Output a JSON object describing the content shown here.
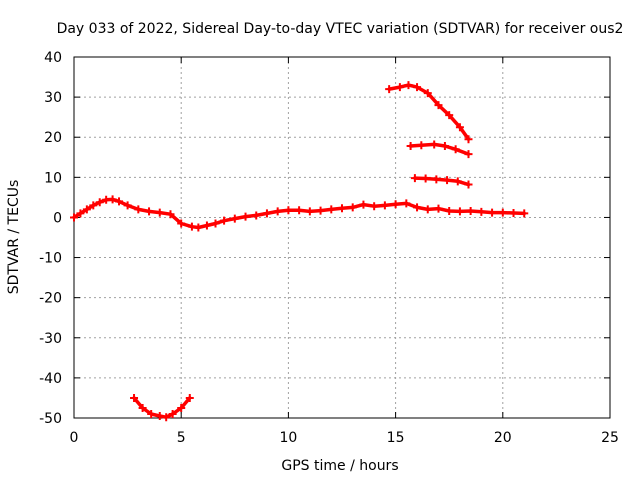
{
  "chart_data": {
    "type": "line",
    "title": "Day 033 of 2022, Sidereal Day-to-day VTEC variation (SDTVAR) for receiver ous2",
    "xlabel": "GPS time / hours",
    "ylabel": "SDTVAR / TECUs",
    "xlim": [
      0,
      25
    ],
    "ylim": [
      -50,
      40
    ],
    "xticks": [
      0,
      5,
      10,
      15,
      20,
      25
    ],
    "yticks": [
      -50,
      -40,
      -30,
      -20,
      -10,
      0,
      10,
      20,
      30,
      40
    ],
    "grid": true,
    "series_color": "#ff0000",
    "series": [
      {
        "name": "main-track",
        "x": [
          0.0,
          0.3,
          0.6,
          0.9,
          1.2,
          1.5,
          1.8,
          2.1,
          2.5,
          3.0,
          3.5,
          4.0,
          4.5,
          5.0,
          5.5,
          5.8,
          6.2,
          6.6,
          7.0,
          7.5,
          8.0,
          8.5,
          9.0,
          9.5,
          10.0,
          10.5,
          11.0,
          11.5,
          12.0,
          12.5,
          13.0,
          13.5,
          14.0,
          14.5,
          15.0,
          15.5,
          16.0,
          16.5,
          17.0,
          17.5,
          18.0,
          18.5,
          19.0,
          19.5,
          20.0,
          20.5,
          21.0
        ],
        "y": [
          0.0,
          1.0,
          2.0,
          3.0,
          3.8,
          4.4,
          4.5,
          4.0,
          3.0,
          2.0,
          1.5,
          1.2,
          0.8,
          -1.5,
          -2.3,
          -2.5,
          -2.0,
          -1.5,
          -0.8,
          -0.3,
          0.2,
          0.5,
          1.0,
          1.5,
          1.8,
          1.8,
          1.5,
          1.7,
          2.0,
          2.3,
          2.5,
          3.2,
          2.8,
          3.0,
          3.3,
          3.5,
          2.5,
          2.0,
          2.2,
          1.6,
          1.5,
          1.6,
          1.4,
          1.2,
          1.2,
          1.1,
          1.0
        ]
      },
      {
        "name": "bottom-dip",
        "x": [
          2.8,
          3.2,
          3.6,
          4.0,
          4.3,
          4.6,
          5.0,
          5.4
        ],
        "y": [
          -45.0,
          -47.5,
          -49.0,
          -49.5,
          -49.8,
          -49.0,
          -47.5,
          -45.0
        ]
      },
      {
        "name": "upper-arc",
        "x": [
          14.7,
          15.2,
          15.6,
          16.0,
          16.5,
          17.0,
          17.5,
          18.0,
          18.4
        ],
        "y": [
          32.0,
          32.5,
          33.0,
          32.5,
          31.0,
          28.0,
          25.5,
          22.5,
          19.5
        ]
      },
      {
        "name": "mid-arc",
        "x": [
          15.7,
          16.2,
          16.8,
          17.3,
          17.8,
          18.4
        ],
        "y": [
          17.8,
          18.0,
          18.2,
          17.8,
          17.0,
          15.8
        ]
      },
      {
        "name": "lower-arc",
        "x": [
          15.9,
          16.4,
          16.9,
          17.4,
          17.9,
          18.4
        ],
        "y": [
          9.8,
          9.7,
          9.5,
          9.3,
          9.0,
          8.2
        ]
      }
    ]
  }
}
